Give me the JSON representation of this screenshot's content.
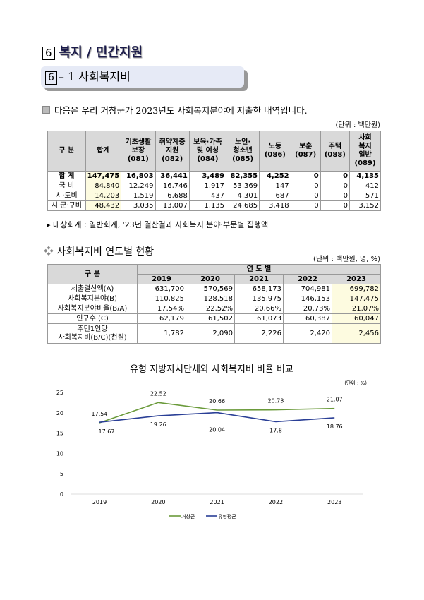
{
  "section": {
    "num": "6",
    "title": "복지 / 민간지원"
  },
  "subsection": {
    "num": "6",
    "title": "– 1 사회복지비"
  },
  "intro": "다음은 우리 거창군가 2023년도 사회복지분야에 지출한 내역입니다.",
  "table1": {
    "unit": "(단위 : 백만원)",
    "headers": [
      "구 분",
      "합계",
      "기초생활\n보장\n(081)",
      "취약계층\n지원\n(082)",
      "보육·가족\n및 여성\n(084)",
      "노인·\n청소년\n(085)",
      "노동\n(086)",
      "보훈\n(087)",
      "주택\n(088)",
      "사회\n복지\n일반\n(089)"
    ],
    "rows": [
      [
        "합 계",
        "147,475",
        "16,803",
        "36,441",
        "3,489",
        "82,355",
        "4,252",
        "0",
        "0",
        "4,135"
      ],
      [
        "국 비",
        "84,840",
        "12,249",
        "16,746",
        "1,917",
        "53,369",
        "147",
        "0",
        "0",
        "412"
      ],
      [
        "시·도비",
        "14,203",
        "1,519",
        "6,688",
        "437",
        "4,301",
        "687",
        "0",
        "0",
        "571"
      ],
      [
        "시·군·구비",
        "48,432",
        "3,035",
        "13,007",
        "1,135",
        "24,685",
        "3,418",
        "0",
        "0",
        "3,152"
      ]
    ]
  },
  "note": "대상회계 : 일반회계, '23년 결산결과 사회복지 분야·부문별 집행액",
  "section2_title": "사회복지비 연도별 현황",
  "table2": {
    "unit": "(단위 : 백만원, 명, %)",
    "corner": "구 분",
    "group": "연 도 별",
    "years": [
      "2019",
      "2020",
      "2021",
      "2022",
      "2023"
    ],
    "rows": [
      {
        "label": "세출결산액(A)",
        "values": [
          "631,700",
          "570,569",
          "658,173",
          "704,981",
          "699,782"
        ]
      },
      {
        "label": "사회복지분야(B)",
        "values": [
          "110,825",
          "128,518",
          "135,975",
          "146,153",
          "147,475"
        ]
      },
      {
        "label": "사회복지분야비율(B/A)",
        "values": [
          "17.54%",
          "22.52%",
          "20.66%",
          "20.73%",
          "21.07%"
        ]
      },
      {
        "label": "인구수 (C)",
        "values": [
          "62,179",
          "61,502",
          "61,073",
          "60,387",
          "60,047"
        ]
      },
      {
        "label": "주민1인당\n사회복지비(B/C)(천원)",
        "values": [
          "1,782",
          "2,090",
          "2,226",
          "2,420",
          "2,456"
        ]
      }
    ]
  },
  "chart_data": {
    "type": "line",
    "title": "유형 지방자치단체와 사회복지비 비율 비교",
    "unit": "(단위 : %)",
    "categories": [
      "2019",
      "2020",
      "2021",
      "2022",
      "2023"
    ],
    "ylim": [
      0,
      25
    ],
    "yticks": [
      0,
      5,
      10,
      15,
      20,
      25
    ],
    "grid": false,
    "legend": "bottom",
    "series": [
      {
        "name": "거창군",
        "color": "#6a9a3a",
        "values": [
          17.54,
          22.52,
          20.66,
          20.73,
          21.07
        ]
      },
      {
        "name": "유형평균",
        "color": "#2a3f96",
        "values": [
          17.67,
          19.26,
          20.04,
          17.8,
          18.76
        ]
      }
    ]
  }
}
